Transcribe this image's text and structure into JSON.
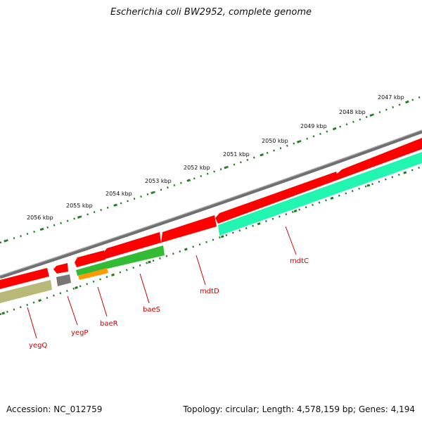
{
  "title": "Escherichia coli BW2952, complete genome",
  "footer": {
    "accession": "Accession: NC_012759",
    "summary": "Topology: circular; Length: 4,578,159 bp; Genes: 4,194"
  },
  "colors": {
    "backbone": "#777777",
    "forward_gene": "#ff0000",
    "mdt_gene": "#22f5b0",
    "baeS_gene": "#33bb33",
    "baeR_gene": "#ff9900",
    "yegQ_gene": "#b8b878",
    "yegP_gene": "#777777",
    "tick": "#1a7a1a",
    "label": "#cc0000"
  },
  "scale": {
    "unit": "kbp",
    "labels": [
      "2047 kbp",
      "2048 kbp",
      "2049 kbp",
      "2050 kbp",
      "2051 kbp",
      "2052 kbp",
      "2053 kbp",
      "2054 kbp",
      "2055 kbp",
      "2056 kbp"
    ]
  },
  "genes": [
    {
      "name": "mdtC",
      "strand": "reverse",
      "color": "mdt_gene"
    },
    {
      "name": "mdtD",
      "strand": "reverse",
      "color": "forward_gene"
    },
    {
      "name": "baeS",
      "strand": "reverse",
      "color": "baeS_gene"
    },
    {
      "name": "baeR",
      "strand": "reverse",
      "color": "baeR_gene"
    },
    {
      "name": "yegP",
      "strand": "reverse",
      "color": "yegP_gene"
    },
    {
      "name": "yegQ",
      "strand": "reverse",
      "color": "yegQ_gene"
    }
  ]
}
